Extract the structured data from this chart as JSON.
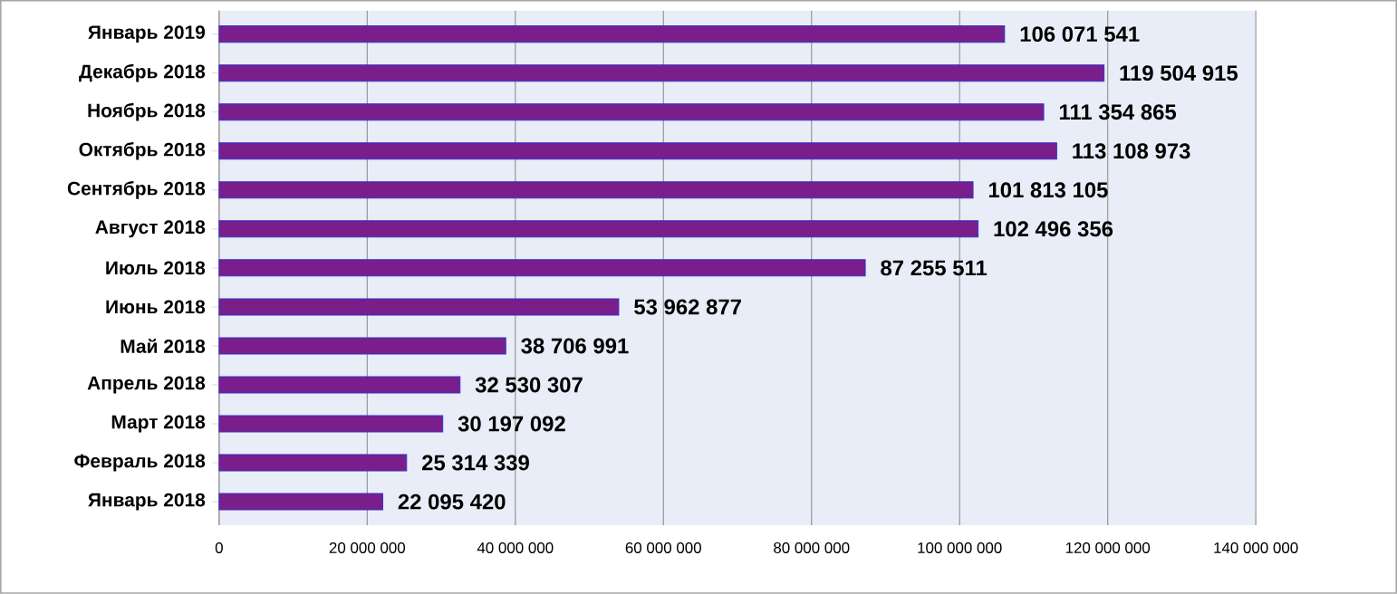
{
  "chart_data": {
    "type": "bar",
    "orientation": "horizontal",
    "categories": [
      "Январь 2019",
      "Декабрь 2018",
      "Ноябрь 2018",
      "Октябрь 2018",
      "Сентябрь 2018",
      "Август 2018",
      "Июль 2018",
      "Июнь 2018",
      "Май 2018",
      "Апрель 2018",
      "Март 2018",
      "Февраль 2018",
      "Январь 2018"
    ],
    "values": [
      106071541,
      119504915,
      111354865,
      113108973,
      101813105,
      102496356,
      87255511,
      53962877,
      38706991,
      32530307,
      30197092,
      25314339,
      22095420
    ],
    "value_labels": [
      "106 071 541",
      "119 504 915",
      "111 354 865",
      "113 108 973",
      "101 813 105",
      "102 496 356",
      "87 255 511",
      "53 962 877",
      "38 706 991",
      "32 530 307",
      "30 197 092",
      "25 314 339",
      "22 095 420"
    ],
    "color": "#7a1e8c",
    "xlim": [
      0,
      140000000
    ],
    "xticks": [
      0,
      {
        "value": 20000000,
        "label": "20 000 000"
      },
      {
        "value": 40000000,
        "label": "40 000 000"
      },
      {
        "value": 60000000,
        "label": "60 000 000"
      },
      {
        "value": 80000000,
        "label": "80 000 000"
      },
      {
        "value": 100000000,
        "label": "100 000 000"
      },
      {
        "value": 120000000,
        "label": "120 000 000"
      },
      {
        "value": 140000000,
        "label": "140 000 000"
      }
    ],
    "grid": "x"
  }
}
